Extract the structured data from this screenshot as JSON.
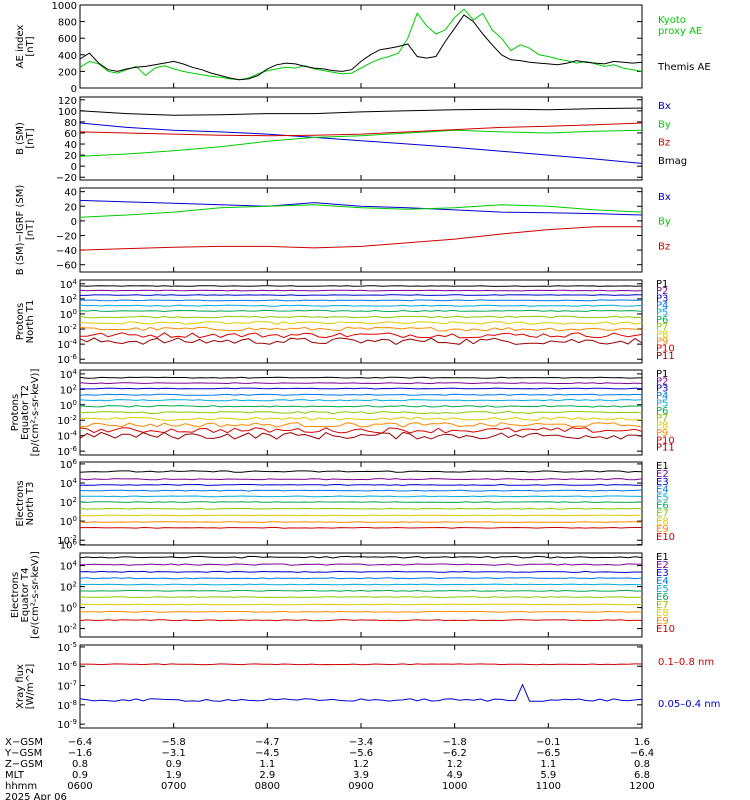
{
  "chart_data": [
    {
      "type": "line",
      "ylabel": [
        "AE index",
        "[nT]"
      ],
      "yticks": [
        "1000",
        "800",
        "600",
        "400",
        "200",
        "0"
      ],
      "legend": [
        {
          "text": "Kyoto",
          "color": "#00cc00"
        },
        {
          "text": "proxy AE",
          "color": "#00cc00"
        },
        {
          "text": "Themis AE",
          "color": "#000000"
        }
      ],
      "series": [
        {
          "name": "Kyoto proxy AE",
          "color": "#00cc00",
          "x": [
            6.0,
            6.1,
            6.2,
            6.3,
            6.4,
            6.5,
            6.6,
            6.7,
            6.8,
            6.9,
            7.0,
            7.1,
            7.2,
            7.3,
            7.4,
            7.5,
            7.6,
            7.7,
            7.8,
            7.9,
            8.0,
            8.1,
            8.2,
            8.3,
            8.4,
            8.5,
            8.6,
            8.7,
            8.8,
            8.9,
            9.0,
            9.1,
            9.2,
            9.3,
            9.4,
            9.5,
            9.6,
            9.7,
            9.8,
            9.9,
            10.0,
            10.1,
            10.2,
            10.3,
            10.4,
            10.5,
            10.6,
            10.7,
            10.8,
            10.9,
            11.0,
            11.1,
            11.2,
            11.3,
            11.4,
            11.5,
            11.6,
            11.7,
            11.8,
            11.9,
            12.0
          ],
          "values": [
            250,
            320,
            290,
            200,
            180,
            220,
            260,
            150,
            240,
            270,
            230,
            200,
            180,
            160,
            140,
            130,
            110,
            100,
            120,
            170,
            210,
            230,
            250,
            240,
            270,
            230,
            210,
            190,
            170,
            180,
            240,
            300,
            350,
            380,
            420,
            600,
            900,
            750,
            650,
            700,
            850,
            950,
            820,
            900,
            700,
            600,
            450,
            520,
            480,
            400,
            380,
            350,
            330,
            300,
            320,
            290,
            260,
            280,
            240,
            220,
            200
          ]
        },
        {
          "name": "Themis AE",
          "color": "#000000",
          "x": [
            6.0,
            6.1,
            6.2,
            6.3,
            6.4,
            6.5,
            6.6,
            6.7,
            6.8,
            6.9,
            7.0,
            7.1,
            7.2,
            7.3,
            7.4,
            7.5,
            7.6,
            7.7,
            7.8,
            7.9,
            8.0,
            8.1,
            8.2,
            8.3,
            8.4,
            8.5,
            8.6,
            8.7,
            8.8,
            8.9,
            9.0,
            9.1,
            9.2,
            9.3,
            9.4,
            9.5,
            9.6,
            9.7,
            9.8,
            9.9,
            10.0,
            10.1,
            10.2,
            10.3,
            10.4,
            10.5,
            10.6,
            10.7,
            10.8,
            10.9,
            11.0,
            11.1,
            11.2,
            11.3,
            11.4,
            11.5,
            11.6,
            11.7,
            11.8,
            11.9,
            12.0
          ],
          "values": [
            350,
            420,
            300,
            220,
            200,
            230,
            250,
            260,
            280,
            300,
            320,
            290,
            250,
            220,
            180,
            150,
            120,
            100,
            110,
            150,
            230,
            280,
            300,
            290,
            260,
            240,
            230,
            210,
            200,
            220,
            320,
            400,
            460,
            480,
            500,
            530,
            380,
            360,
            380,
            560,
            720,
            880,
            800,
            650,
            520,
            400,
            340,
            330,
            310,
            300,
            290,
            280,
            300,
            330,
            310,
            300,
            290,
            320,
            310,
            300,
            310
          ]
        }
      ],
      "ylim": [
        0,
        1000
      ]
    },
    {
      "type": "line",
      "ylabel": [
        "B (SM)",
        "[nT]"
      ],
      "yticks": [
        "120",
        "100",
        "80",
        "60",
        "40",
        "20",
        "0",
        "−20"
      ],
      "legend": [
        {
          "text": "Bx",
          "color": "#0000cc"
        },
        {
          "text": "By",
          "color": "#00cc00"
        },
        {
          "text": "Bz",
          "color": "#cc0000"
        },
        {
          "text": "Bmag",
          "color": "#000000"
        }
      ],
      "series": [
        {
          "name": "Bx",
          "color": "#0000cc",
          "x": [
            6,
            6.5,
            7,
            7.5,
            8,
            8.5,
            9,
            9.5,
            10,
            10.5,
            11,
            11.5,
            12
          ],
          "values": [
            78,
            70,
            65,
            62,
            58,
            52,
            46,
            40,
            34,
            27,
            20,
            13,
            5
          ]
        },
        {
          "name": "By",
          "color": "#00cc00",
          "x": [
            6,
            6.5,
            7,
            7.5,
            8,
            8.5,
            9,
            9.5,
            10,
            10.5,
            11,
            11.5,
            12
          ],
          "values": [
            18,
            22,
            28,
            35,
            45,
            52,
            55,
            60,
            65,
            62,
            60,
            63,
            65
          ]
        },
        {
          "name": "Bz",
          "color": "#cc0000",
          "x": [
            6,
            6.5,
            7,
            7.5,
            8,
            8.5,
            9,
            9.5,
            10,
            10.5,
            11,
            11.5,
            12
          ],
          "values": [
            62,
            60,
            58,
            56,
            55,
            56,
            58,
            62,
            66,
            70,
            72,
            75,
            78
          ]
        },
        {
          "name": "Bmag",
          "color": "#000000",
          "x": [
            6,
            6.5,
            7,
            7.5,
            8,
            8.5,
            9,
            9.5,
            10,
            10.5,
            11,
            11.5,
            12
          ],
          "values": [
            100,
            95,
            92,
            93,
            95,
            95,
            98,
            100,
            102,
            103,
            102,
            104,
            105
          ]
        }
      ],
      "ylim": [
        -25,
        125
      ]
    },
    {
      "type": "line",
      "ylabel": [
        "B (SM)−IGRF (SM)",
        "[nT]"
      ],
      "yticks": [
        "40",
        "20",
        "0",
        "−20",
        "−40",
        "−60"
      ],
      "legend": [
        {
          "text": "Bx",
          "color": "#0000cc"
        },
        {
          "text": "By",
          "color": "#00cc00"
        },
        {
          "text": "Bz",
          "color": "#cc0000"
        }
      ],
      "series": [
        {
          "name": "Bx",
          "color": "#0000cc",
          "x": [
            6,
            6.5,
            7,
            7.5,
            8,
            8.5,
            9,
            9.5,
            10,
            10.5,
            11,
            11.5,
            12
          ],
          "values": [
            28,
            26,
            24,
            22,
            20,
            25,
            20,
            18,
            15,
            12,
            11,
            10,
            8
          ]
        },
        {
          "name": "By",
          "color": "#00cc00",
          "x": [
            6,
            6.5,
            7,
            7.5,
            8,
            8.5,
            9,
            9.5,
            10,
            10.5,
            11,
            11.5,
            12
          ],
          "values": [
            5,
            8,
            12,
            18,
            20,
            22,
            18,
            16,
            18,
            22,
            20,
            15,
            12
          ]
        },
        {
          "name": "Bz",
          "color": "#cc0000",
          "x": [
            6,
            6.5,
            7,
            7.5,
            8,
            8.5,
            9,
            9.5,
            10,
            10.5,
            11,
            11.5,
            12
          ],
          "values": [
            -40,
            -38,
            -36,
            -35,
            -35,
            -37,
            -35,
            -30,
            -25,
            -18,
            -12,
            -8,
            -8
          ]
        }
      ],
      "ylim": [
        -70,
        45
      ]
    },
    {
      "type": "line",
      "ylog": true,
      "ylabel": [
        "Protons",
        "North T1"
      ],
      "yticks": [
        "10^4",
        "10^2",
        "10^0",
        "10^-2",
        "10^-4",
        "10^-6"
      ],
      "legend": [
        {
          "text": "P1",
          "color": "#000000"
        },
        {
          "text": "P2",
          "color": "#7a0099"
        },
        {
          "text": "P3",
          "color": "#0000cc"
        },
        {
          "text": "P4",
          "color": "#0077ee"
        },
        {
          "text": "P5",
          "color": "#00aadd"
        },
        {
          "text": "P6",
          "color": "#00aa55"
        },
        {
          "text": "P7",
          "color": "#88cc00"
        },
        {
          "text": "P8",
          "color": "#ddcc00"
        },
        {
          "text": "P9",
          "color": "#ff8800"
        },
        {
          "text": "P10",
          "color": "#dd0000"
        },
        {
          "text": "P11",
          "color": "#990000"
        }
      ],
      "levels": [
        3.7,
        3.1,
        2.5,
        1.8,
        1.1,
        0.4,
        -0.4,
        -1.2,
        -2.0,
        -2.8,
        -3.6
      ],
      "noise": [
        0.05,
        0.05,
        0.05,
        0.06,
        0.07,
        0.08,
        0.12,
        0.18,
        0.25,
        0.35,
        0.45
      ],
      "ylim": [
        -6.5,
        4.5
      ]
    },
    {
      "type": "line",
      "ylog": true,
      "ylabel": [
        "Protons",
        "Equator T2",
        "[p/(cm²-s-sr-keV)]"
      ],
      "yticks": [
        "10^4",
        "10^2",
        "10^0",
        "10^-2",
        "10^-4",
        "10^-6"
      ],
      "legend": [
        {
          "text": "P1",
          "color": "#000000"
        },
        {
          "text": "P2",
          "color": "#7a0099"
        },
        {
          "text": "P3",
          "color": "#0000cc"
        },
        {
          "text": "P4",
          "color": "#0077ee"
        },
        {
          "text": "P5",
          "color": "#00aadd"
        },
        {
          "text": "P6",
          "color": "#00aa55"
        },
        {
          "text": "P7",
          "color": "#88cc00"
        },
        {
          "text": "P8",
          "color": "#ddcc00"
        },
        {
          "text": "P9",
          "color": "#ff8800"
        },
        {
          "text": "P10",
          "color": "#dd0000"
        },
        {
          "text": "P11",
          "color": "#990000"
        }
      ],
      "levels": [
        3.5,
        2.8,
        2.1,
        1.3,
        0.6,
        -0.2,
        -1.0,
        -1.8,
        -2.6,
        -3.3,
        -4.0
      ],
      "noise": [
        0.06,
        0.06,
        0.06,
        0.07,
        0.08,
        0.1,
        0.15,
        0.2,
        0.3,
        0.35,
        0.45
      ],
      "ylim": [
        -6.5,
        4.5
      ]
    },
    {
      "type": "line",
      "ylog": true,
      "ylabel": [
        "Electrons",
        "North T3"
      ],
      "yticks": [
        "10^6",
        "10^4",
        "10^2",
        "10^0",
        "10^-2"
      ],
      "legend": [
        {
          "text": "E1",
          "color": "#000000"
        },
        {
          "text": "E2",
          "color": "#7a0099"
        },
        {
          "text": "E3",
          "color": "#0000cc"
        },
        {
          "text": "E4",
          "color": "#0077ee"
        },
        {
          "text": "E5",
          "color": "#00aadd"
        },
        {
          "text": "E6",
          "color": "#00aa55"
        },
        {
          "text": "E7",
          "color": "#88cc00"
        },
        {
          "text": "E8",
          "color": "#ddcc00"
        },
        {
          "text": "E9",
          "color": "#ff8800"
        },
        {
          "text": "E10",
          "color": "#cc0000"
        }
      ],
      "levels": [
        5.2,
        4.4,
        3.8,
        3.2,
        2.6,
        2.0,
        1.3,
        0.6,
        -0.1,
        -0.7
      ],
      "noise": [
        0.08,
        0.06,
        0.05,
        0.05,
        0.04,
        0.04,
        0.04,
        0.04,
        0.04,
        0.04
      ],
      "ylim": [
        -2.5,
        6.2
      ]
    },
    {
      "type": "line",
      "ylog": true,
      "ylabel": [
        "Electrons",
        "Equator T4",
        "[e/(cm²-s-sr-keV)]"
      ],
      "yticks": [
        "10^6",
        "10^4",
        "10^2",
        "10^0",
        "10^-2"
      ],
      "legend": [
        {
          "text": "E1",
          "color": "#000000"
        },
        {
          "text": "E2",
          "color": "#7a0099"
        },
        {
          "text": "E3",
          "color": "#0000cc"
        },
        {
          "text": "E4",
          "color": "#0077ee"
        },
        {
          "text": "E5",
          "color": "#00aadd"
        },
        {
          "text": "E6",
          "color": "#00aa55"
        },
        {
          "text": "E7",
          "color": "#88cc00"
        },
        {
          "text": "E8",
          "color": "#ddcc00"
        },
        {
          "text": "E9",
          "color": "#ff8800"
        },
        {
          "text": "E10",
          "color": "#cc0000"
        }
      ],
      "levels": [
        4.8,
        4.1,
        3.4,
        2.8,
        2.2,
        1.6,
        1.0,
        0.3,
        -0.4,
        -1.2
      ],
      "noise": [
        0.08,
        0.06,
        0.05,
        0.05,
        0.04,
        0.04,
        0.04,
        0.04,
        0.04,
        0.05
      ],
      "ylim": [
        -2.8,
        5.2
      ]
    },
    {
      "type": "line",
      "ylog": true,
      "ylabel": [
        "Xray flux",
        "[W/m^2]"
      ],
      "yticks": [
        "10^-5",
        "10^-6",
        "10^-7",
        "10^-8",
        "10^-9"
      ],
      "legend": [
        {
          "text": "0.1–0.8 nm",
          "color": "#cc0000"
        },
        {
          "text": "0.05–0.4 nm",
          "color": "#0000cc"
        }
      ],
      "levels": [
        -5.9,
        -7.75
      ],
      "noise": [
        0.02,
        0.07
      ],
      "ylim": [
        -9.2,
        -4.9
      ]
    }
  ],
  "x_axis": {
    "ticks": [
      "0600",
      "0700",
      "0800",
      "0900",
      "1000",
      "1100",
      "1200"
    ],
    "rows": [
      {
        "label": "X−GSM",
        "values": [
          "−6.4",
          "−5.8",
          "−4.7",
          "−3.4",
          "−1.8",
          "−0.1",
          "1.6"
        ]
      },
      {
        "label": "Y−GSM",
        "values": [
          "−1.6",
          "−3.1",
          "−4.5",
          "−5.6",
          "−6.2",
          "−6.5",
          "−6.4"
        ]
      },
      {
        "label": "Z−GSM",
        "values": [
          "0.8",
          "0.9",
          "1.1",
          "1.2",
          "1.2",
          "1.1",
          "0.8"
        ]
      },
      {
        "label": "MLT",
        "values": [
          "0.9",
          "1.9",
          "2.9",
          "3.9",
          "4.9",
          "5.9",
          "6.8"
        ]
      },
      {
        "label": "hhmm",
        "values": [
          "0600",
          "0700",
          "0800",
          "0900",
          "1000",
          "1100",
          "1200"
        ]
      }
    ],
    "date": "2025 Apr 06"
  }
}
